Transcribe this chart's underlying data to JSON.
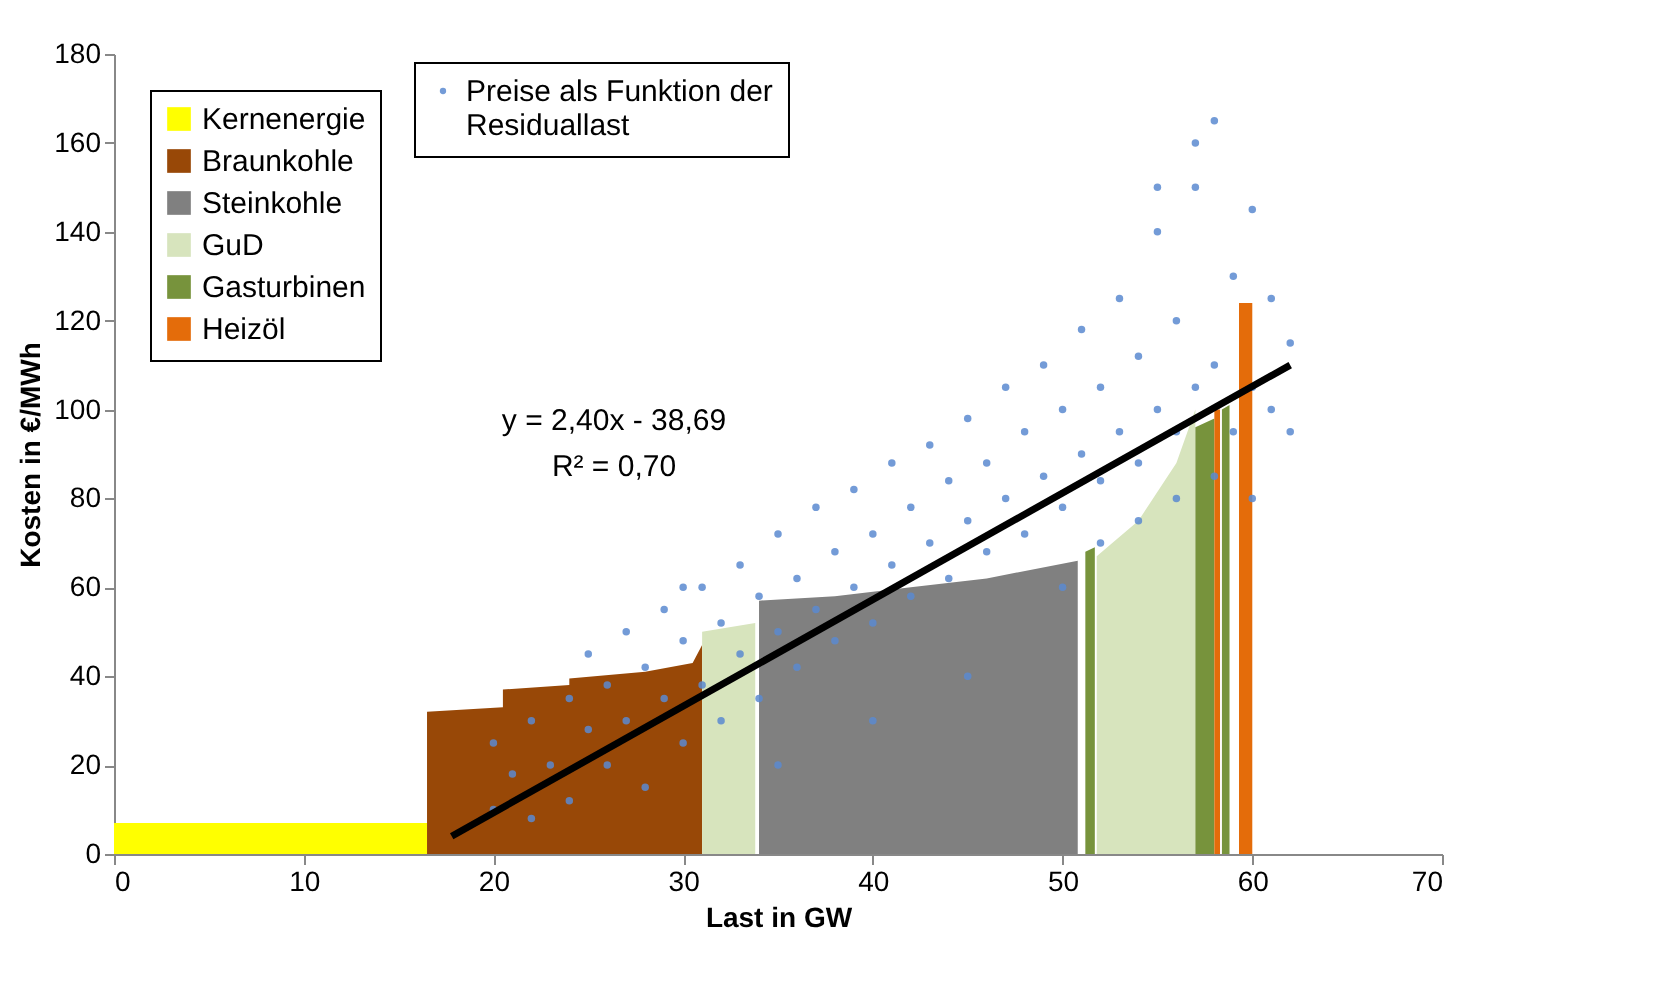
{
  "chart_data": {
    "type": "area",
    "xlabel": "Last in GW",
    "ylabel": "Kosten in €/MWh",
    "xlim": [
      0,
      70
    ],
    "ylim": [
      0,
      180
    ],
    "xticks": [
      0,
      10,
      20,
      30,
      40,
      50,
      60,
      70
    ],
    "yticks": [
      0,
      20,
      40,
      60,
      80,
      100,
      120,
      140,
      160,
      180
    ],
    "grid": false,
    "legend": "top left",
    "annotations": [
      "y = 2,40x - 38,69",
      "R² = 0,70"
    ],
    "series": [
      {
        "name": "Kernenergie",
        "color": "#ffff00",
        "x": [
          0,
          16.5
        ],
        "values": [
          7,
          7
        ]
      },
      {
        "name": "Braunkohle",
        "color": "#984807",
        "x": [
          16.5,
          20.5,
          20.5,
          24,
          24,
          28,
          30.5,
          31
        ],
        "values": [
          32,
          33,
          37,
          38,
          39.5,
          41,
          43,
          47
        ]
      },
      {
        "name": "Steinkohle",
        "color": "#808080",
        "x": [
          34,
          38,
          42,
          46,
          50.8
        ],
        "values": [
          57,
          58,
          60,
          62,
          66
        ]
      },
      {
        "name": "GuD",
        "color": "#d7e4bd",
        "x": [
          31,
          33.8,
          33.8,
          51.8,
          51.8,
          54,
          56,
          57
        ],
        "values": [
          50,
          52,
          0,
          0,
          67,
          75,
          88,
          100
        ]
      },
      {
        "name": "Gasturbinen",
        "color": "#77933c",
        "x": [
          51.2,
          51.7,
          51.7,
          57,
          57,
          58,
          58,
          58.4,
          58.4,
          58.8
        ],
        "values": [
          68,
          69,
          0,
          0,
          96,
          98,
          0,
          0,
          100,
          101
        ]
      },
      {
        "name": "Heizöl",
        "color": "#e46c0a",
        "x": [
          58,
          58.3,
          58.3,
          59.3,
          59.3,
          60
        ],
        "values": [
          100,
          100,
          0,
          0,
          124,
          124
        ]
      },
      {
        "name": "Preise als Funktion der Residuallast",
        "type": "scatter",
        "marker": "circle",
        "color": "#5a8ad0",
        "x": [
          20,
          20,
          21,
          22,
          22,
          23,
          24,
          24,
          25,
          25,
          26,
          26,
          27,
          27,
          28,
          28,
          29,
          29,
          30,
          30,
          30,
          31,
          31,
          32,
          32,
          33,
          33,
          34,
          34,
          35,
          35,
          35,
          36,
          36,
          37,
          37,
          38,
          38,
          39,
          39,
          40,
          40,
          40,
          41,
          41,
          42,
          42,
          43,
          43,
          44,
          44,
          45,
          45,
          45,
          46,
          46,
          47,
          47,
          48,
          48,
          49,
          49,
          50,
          50,
          50,
          51,
          51,
          52,
          52,
          52,
          53,
          53,
          54,
          54,
          54,
          55,
          55,
          55,
          56,
          56,
          56,
          57,
          57,
          57,
          58,
          58,
          58,
          59,
          59,
          60,
          60,
          60,
          61,
          61,
          62,
          62
        ],
        "values": [
          10,
          25,
          18,
          30,
          8,
          20,
          35,
          12,
          28,
          45,
          20,
          38,
          30,
          50,
          15,
          42,
          35,
          55,
          25,
          48,
          60,
          60,
          38,
          30,
          52,
          45,
          65,
          35,
          58,
          50,
          72,
          20,
          42,
          62,
          55,
          78,
          48,
          68,
          60,
          82,
          30,
          52,
          72,
          65,
          88,
          58,
          78,
          70,
          92,
          62,
          84,
          75,
          98,
          40,
          68,
          88,
          80,
          105,
          72,
          95,
          85,
          110,
          60,
          78,
          100,
          90,
          118,
          70,
          84,
          105,
          95,
          125,
          75,
          88,
          112,
          100,
          140,
          150,
          80,
          95,
          120,
          105,
          150,
          160,
          85,
          110,
          165,
          95,
          130,
          80,
          105,
          145,
          100,
          125,
          95,
          115
        ]
      },
      {
        "type": "line",
        "color": "#000000",
        "x": [
          17.8,
          62
        ],
        "values": [
          4,
          110
        ]
      }
    ]
  }
}
